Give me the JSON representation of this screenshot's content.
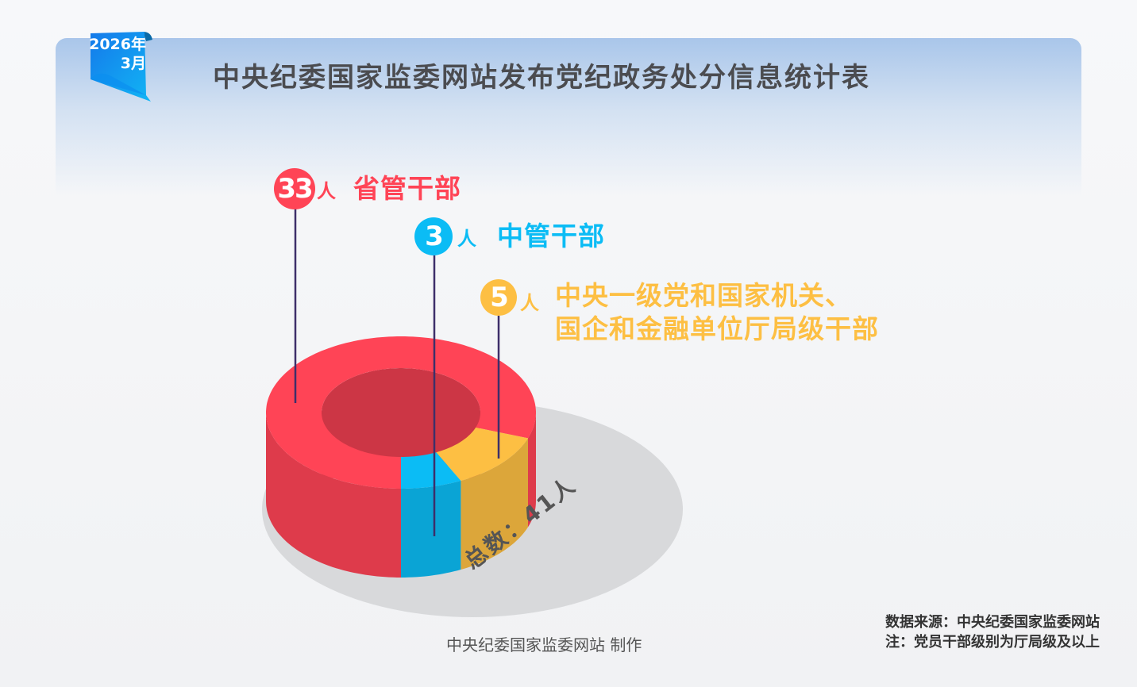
{
  "header": {
    "title": "中央纪委国家监委网站发布党纪政务处分信息统计表",
    "year": "2026年",
    "month": "3月"
  },
  "colors": {
    "red": "#ff4456",
    "blue": "#0bbcf5",
    "yellow": "#fdbf43",
    "header_blue": "#a9c6ea"
  },
  "chart_data": {
    "type": "pie",
    "variant": "3d-donut",
    "total_label": "总数：41人",
    "unit": "人",
    "slices": [
      {
        "label": "省管干部",
        "value": 33,
        "color": "#ff4456"
      },
      {
        "label": "中管干部",
        "value": 3,
        "color": "#0bbcf5"
      },
      {
        "label": "中央一级党和国家机关、国企和金融单位厅局级干部",
        "label_lines": [
          "中央一级党和国家机关、",
          "国企和金融单位厅局级干部"
        ],
        "value": 5,
        "color": "#fdbf43"
      }
    ]
  },
  "labels": {
    "ren": "人",
    "s0": "33",
    "s1": "3",
    "s2": "5"
  },
  "footer": {
    "credit": "中央纪委国家监委网站 制作",
    "source": "数据来源：中央纪委国家监委网站",
    "note": "注：党员干部级别为厅局级及以上"
  }
}
